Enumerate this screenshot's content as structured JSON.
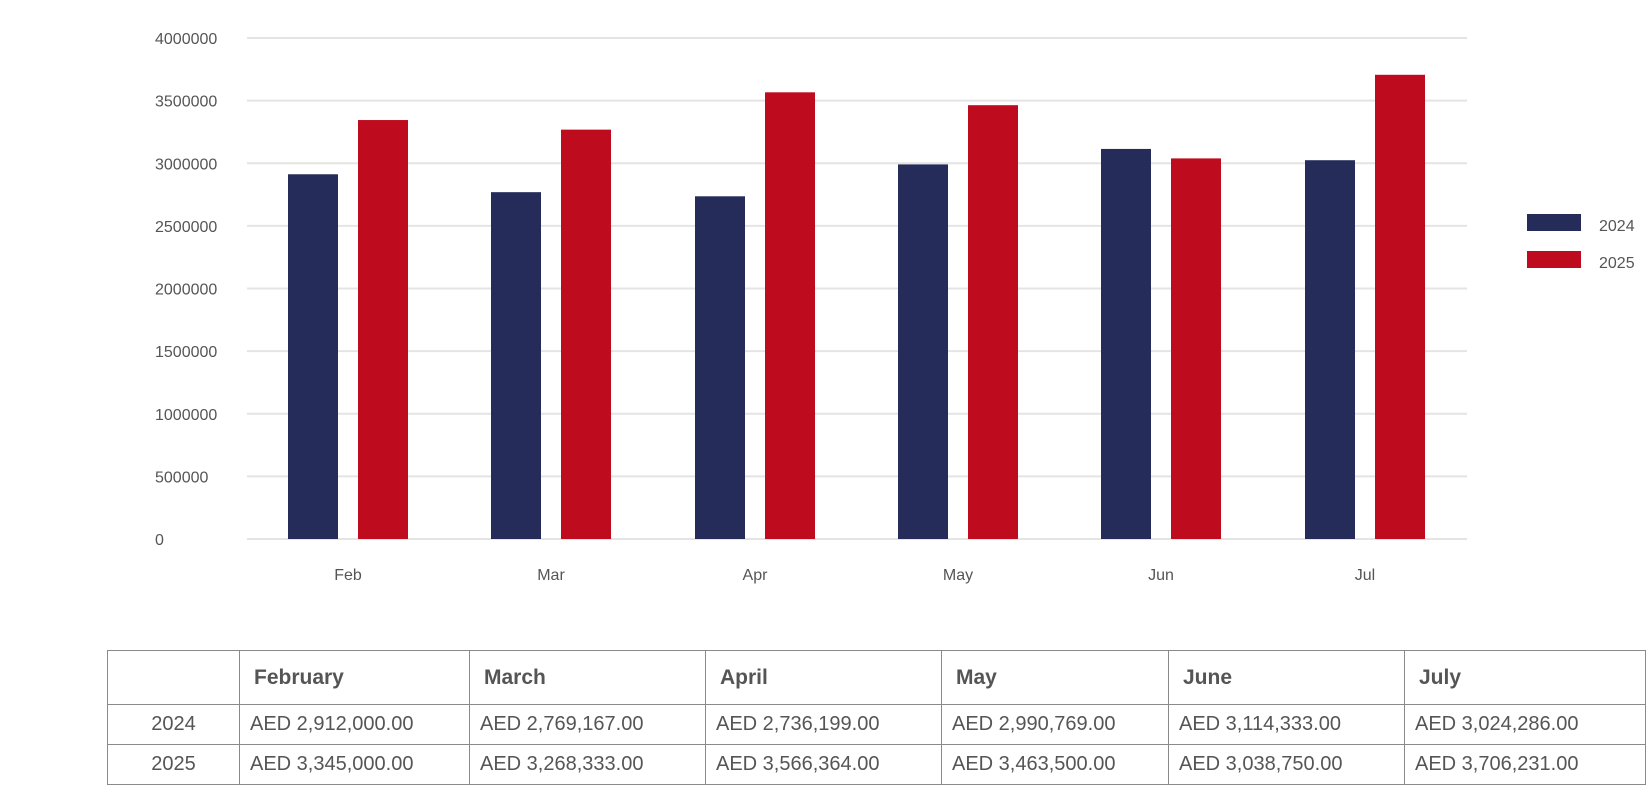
{
  "colors": {
    "series_2024": "#252c5a",
    "series_2025": "#be0b1e",
    "grid": "#e4e4e4",
    "text": "#555555",
    "table_border": "#8a8a8a"
  },
  "chart_data": {
    "type": "bar",
    "categories": [
      "Feb",
      "Mar",
      "Apr",
      "May",
      "Jun",
      "Jul"
    ],
    "series": [
      {
        "name": "2024",
        "values": [
          2912000,
          2769167,
          2736199,
          2990769,
          3114333,
          3024286
        ]
      },
      {
        "name": "2025",
        "values": [
          3345000,
          3268333,
          3566364,
          3463500,
          3038750,
          3706231
        ]
      }
    ],
    "ylim": [
      0,
      4000000
    ],
    "yticks": [
      "0",
      "500000",
      "1000000",
      "1500000",
      "2000000",
      "2500000",
      "3000000",
      "3500000",
      "4000000"
    ],
    "grid": true,
    "legend": "right"
  },
  "table": {
    "header": [
      "",
      "February",
      "March",
      "April",
      "May",
      "June",
      "July"
    ],
    "rows": [
      {
        "label": "2024",
        "cells": [
          "AED 2,912,000.00",
          "AED 2,769,167.00",
          "AED 2,736,199.00",
          "AED 2,990,769.00",
          "AED 3,114,333.00",
          "AED 3,024,286.00"
        ]
      },
      {
        "label": "2025",
        "cells": [
          "AED 3,345,000.00",
          "AED 3,268,333.00",
          "AED 3,566,364.00",
          "AED 3,463,500.00",
          "AED 3,038,750.00",
          "AED 3,706,231.00"
        ]
      }
    ]
  }
}
